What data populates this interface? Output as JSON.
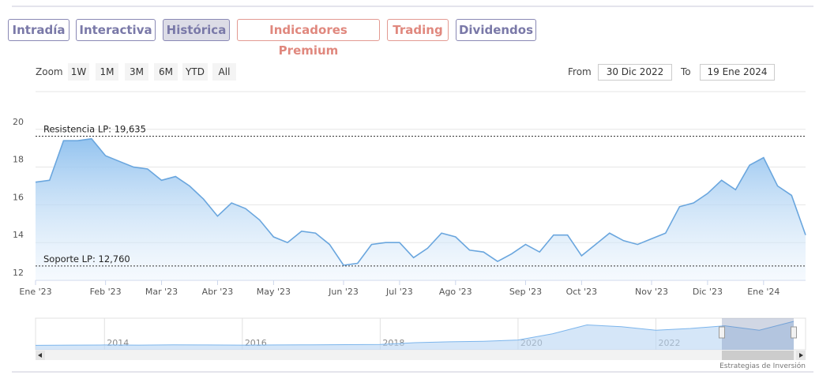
{
  "tabs": [
    "Intradía",
    "Interactiva",
    "Histórica",
    "Indicadores Premium",
    "Trading",
    "Dividendos"
  ],
  "zoom": {
    "label": "Zoom",
    "buttons": [
      "1W",
      "1M",
      "3M",
      "6M",
      "YTD",
      "All"
    ]
  },
  "range": {
    "from_label": "From",
    "from": "30 Dic 2022",
    "to_label": "To",
    "to": "19 Ene 2024"
  },
  "chart_data": {
    "type": "area",
    "color": "#6aa6de",
    "categories": [
      "Ene '23",
      null,
      null,
      null,
      null,
      "Feb '23",
      null,
      null,
      null,
      "Mar '23",
      null,
      null,
      null,
      "Abr '23",
      null,
      null,
      null,
      "May '23",
      null,
      null,
      null,
      null,
      "Jun '23",
      null,
      null,
      null,
      "Jul '23",
      null,
      null,
      null,
      "Ago '23",
      null,
      null,
      null,
      null,
      "Sep '23",
      null,
      null,
      null,
      "Oct '23",
      null,
      null,
      null,
      null,
      "Nov '23",
      null,
      null,
      null,
      "Dic '23",
      null,
      null,
      null,
      "Ene '24",
      null,
      null,
      null
    ],
    "values": [
      17.2,
      17.3,
      19.4,
      19.4,
      19.5,
      18.6,
      18.3,
      18.0,
      17.9,
      17.3,
      17.5,
      17.0,
      16.3,
      15.4,
      16.1,
      15.8,
      15.2,
      14.3,
      14.0,
      14.6,
      14.5,
      13.9,
      12.8,
      12.9,
      13.9,
      14.0,
      14.0,
      13.2,
      13.7,
      14.5,
      14.3,
      13.6,
      13.5,
      13.0,
      13.4,
      13.9,
      13.5,
      14.4,
      14.4,
      13.3,
      13.9,
      14.5,
      14.1,
      13.9,
      14.2,
      14.5,
      15.9,
      16.1,
      16.6,
      17.3,
      16.8,
      18.1,
      18.5,
      17.0,
      16.5,
      14.4
    ],
    "ylim": [
      12,
      22
    ],
    "yticks": [
      12,
      14,
      16,
      18,
      20
    ],
    "grid": true,
    "annotations": [
      {
        "label": "Resistencia LP: 19,635",
        "value": 19.635
      },
      {
        "label": "Soporte LP: 12,760",
        "value": 12.76
      }
    ],
    "navigator": {
      "categories": [
        null,
        null,
        "2014",
        null,
        null,
        null,
        "2016",
        null,
        null,
        null,
        "2018",
        null,
        null,
        null,
        "2020",
        null,
        null,
        null,
        "2022",
        null,
        null,
        null,
        null
      ],
      "values": [
        2.5,
        2.6,
        2.7,
        2.6,
        2.8,
        2.7,
        2.6,
        2.7,
        2.8,
        2.9,
        3.0,
        4.0,
        4.5,
        4.8,
        5.5,
        9,
        14,
        13,
        11,
        12,
        13.5,
        11,
        16
      ]
    }
  },
  "credit": "Estrategias de Inversión"
}
